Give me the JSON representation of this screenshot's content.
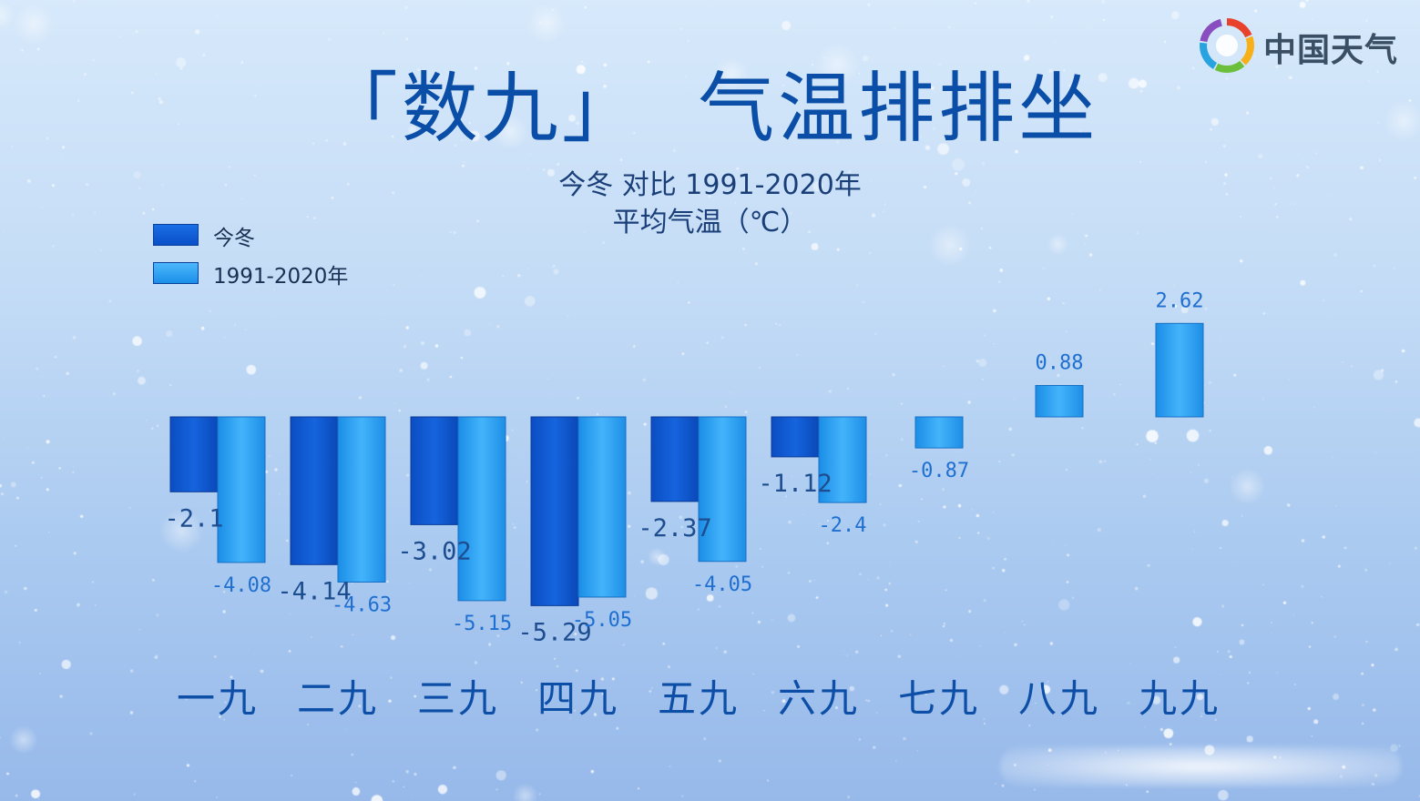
{
  "title": "「数九」  气温排排坐",
  "subtitle_line1": "今冬 对比  1991-2020年",
  "subtitle_line2": "平均气温（℃）",
  "logo": {
    "text": "中国天气"
  },
  "legend": [
    {
      "label": "今冬",
      "color": "#0a5ad8"
    },
    {
      "label": "1991-2020年",
      "color": "#2aa0f2"
    }
  ],
  "chart_data": {
    "type": "bar",
    "categories": [
      "一九",
      "二九",
      "三九",
      "四九",
      "五九",
      "六九",
      "七九",
      "八九",
      "九九"
    ],
    "series": [
      {
        "name": "今冬",
        "values": [
          -2.1,
          -4.14,
          -3.02,
          -5.29,
          -2.37,
          -1.12,
          null,
          null,
          null
        ],
        "labels": [
          "-2.1",
          "-4.14",
          "-3.02",
          "-5.29",
          "-2.37",
          "-1.12",
          null,
          null,
          null
        ],
        "color": "#0a5ad8"
      },
      {
        "name": "1991-2020年",
        "values": [
          -4.08,
          -4.63,
          -5.15,
          -5.05,
          -4.05,
          -2.4,
          -0.87,
          0.88,
          2.62
        ],
        "labels": [
          "-4.08",
          "-4.63",
          "-5.15",
          "-5.05",
          "-4.05",
          "-2.4",
          "-0.87",
          "0.88",
          "2.62"
        ],
        "color": "#2aa0f2"
      }
    ],
    "ylim": [
      -5.6,
      3.0
    ],
    "grid": false,
    "legend_position": "top-left"
  }
}
